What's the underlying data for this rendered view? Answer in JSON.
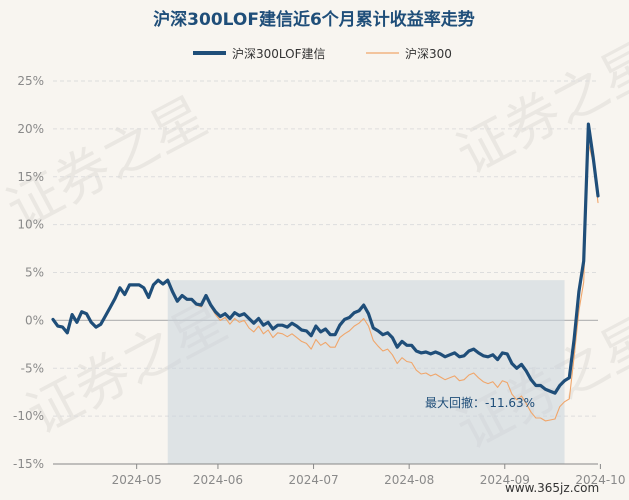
{
  "chart_data": {
    "type": "line",
    "title": "沪深300LOF建信近6个月累计收益率走势",
    "series": [
      {
        "name": "沪深300LOF建信",
        "color": "#1f4e79",
        "values": [
          0.1,
          -0.6,
          -0.7,
          -1.3,
          0.6,
          -0.2,
          0.9,
          0.7,
          -0.2,
          -0.7,
          -0.4,
          0.5,
          1.4,
          2.3,
          3.4,
          2.7,
          3.7,
          3.7,
          3.7,
          3.4,
          2.4,
          3.7,
          4.2,
          3.8,
          4.2,
          3.0,
          2.0,
          2.6,
          2.2,
          2.2,
          1.7,
          1.6,
          2.6,
          1.6,
          0.9,
          0.4,
          0.7,
          0.2,
          0.8,
          0.5,
          0.7,
          0.2,
          -0.3,
          0.2,
          -0.5,
          -0.2,
          -0.9,
          -0.5,
          -0.5,
          -0.7,
          -0.3,
          -0.6,
          -1.0,
          -1.1,
          -1.6,
          -0.6,
          -1.2,
          -0.9,
          -1.5,
          -1.5,
          -0.5,
          0.1,
          0.3,
          0.8,
          1.0,
          1.6,
          0.7,
          -0.8,
          -1.1,
          -1.5,
          -1.3,
          -1.8,
          -2.8,
          -2.2,
          -2.6,
          -2.6,
          -3.2,
          -3.4,
          -3.3,
          -3.5,
          -3.3,
          -3.5,
          -3.8,
          -3.6,
          -3.4,
          -3.8,
          -3.7,
          -3.2,
          -3.0,
          -3.4,
          -3.7,
          -3.8,
          -3.6,
          -4.1,
          -3.4,
          -3.5,
          -4.5,
          -5.0,
          -4.6,
          -5.3,
          -6.2,
          -6.8,
          -6.8,
          -7.2,
          -7.4,
          -7.6,
          -6.8,
          -6.3,
          -6.0,
          -2.0,
          3.0,
          6.2,
          20.5,
          17.0,
          13.0
        ]
      },
      {
        "name": "沪深300",
        "color": "#f0a66b",
        "values": [
          0.1,
          -0.5,
          -0.6,
          -1.2,
          0.6,
          -0.1,
          0.9,
          0.7,
          -0.1,
          -0.6,
          -0.3,
          0.6,
          1.5,
          2.4,
          3.4,
          2.8,
          3.8,
          3.7,
          3.7,
          3.4,
          2.5,
          3.7,
          4.2,
          3.9,
          4.3,
          2.9,
          1.9,
          2.5,
          2.1,
          2.1,
          1.6,
          1.4,
          2.4,
          1.4,
          0.6,
          0.0,
          0.3,
          -0.4,
          0.2,
          -0.2,
          0.0,
          -0.8,
          -1.2,
          -0.6,
          -1.4,
          -1.0,
          -1.8,
          -1.3,
          -1.4,
          -1.7,
          -1.4,
          -1.8,
          -2.2,
          -2.4,
          -3.0,
          -2.0,
          -2.6,
          -2.3,
          -2.8,
          -2.8,
          -1.8,
          -1.4,
          -1.1,
          -0.6,
          -0.3,
          0.2,
          -0.6,
          -2.1,
          -2.7,
          -3.2,
          -3.0,
          -3.6,
          -4.5,
          -3.9,
          -4.3,
          -4.4,
          -5.2,
          -5.6,
          -5.5,
          -5.8,
          -5.6,
          -5.9,
          -6.2,
          -6.0,
          -5.8,
          -6.3,
          -6.2,
          -5.7,
          -5.5,
          -6.0,
          -6.4,
          -6.6,
          -6.4,
          -7.0,
          -6.3,
          -6.5,
          -7.7,
          -8.3,
          -7.9,
          -8.7,
          -9.6,
          -10.2,
          -10.2,
          -10.5,
          -10.4,
          -10.3,
          -9.0,
          -8.5,
          -8.2,
          -3.8,
          1.0,
          4.0,
          18.5,
          16.5,
          12.3
        ]
      }
    ],
    "x_axis": {
      "tick_labels": [
        "2024-05",
        "2024-06",
        "2024-07",
        "2024-08",
        "2024-09",
        "2024-10"
      ],
      "tick_positions": [
        17.5,
        34.5,
        54.5,
        74.5,
        94.5,
        114.5
      ]
    },
    "y_axis": {
      "min": -15,
      "max": 25,
      "step": 5,
      "tick_labels": [
        "25%",
        "20%",
        "15%",
        "10%",
        "5%",
        "0%",
        "-5%",
        "-10%",
        "-15%"
      ],
      "grid": true
    },
    "max_drawdown": {
      "label": "最大回撤：-11.63%",
      "start_index": 24,
      "end_index": 107
    },
    "watermark": {
      "text": "证券之星",
      "url": "www.365jz.com"
    },
    "legend_position": "top-center"
  }
}
